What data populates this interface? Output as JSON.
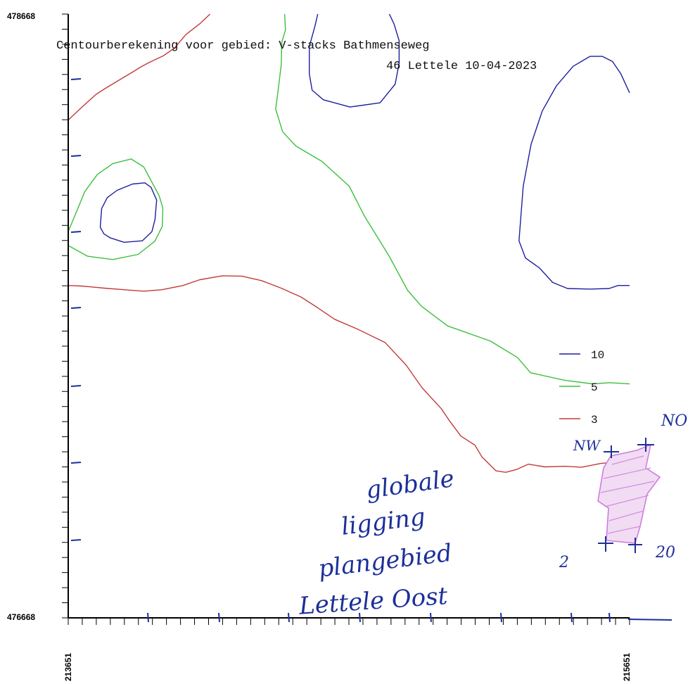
{
  "chart_data": {
    "type": "line",
    "title": "Centourberekening voor gebied: V-stacks Bathmenseweg",
    "subtitle": "46 Lettele 10-04-2023",
    "xlim": [
      213651,
      215651
    ],
    "ylim": [
      476668,
      478668
    ],
    "x_tick_labels": [
      "213651",
      "215651"
    ],
    "y_tick_labels": [
      "478668",
      "476668"
    ],
    "legend": {
      "placement": "right",
      "entries": [
        "10",
        "5",
        "3"
      ]
    },
    "series": [
      {
        "name": "10",
        "color": "#1f1f9e",
        "lines": [
          [
            [
              213770,
              478024
            ],
            [
              213765,
              477962
            ],
            [
              213778,
              477940
            ],
            [
              213800,
              477927
            ],
            [
              213850,
              477912
            ],
            [
              213915,
              477917
            ],
            [
              213949,
              477947
            ],
            [
              213960,
              477987
            ],
            [
              213966,
              478052
            ],
            [
              213946,
              478094
            ],
            [
              213924,
              478109
            ],
            [
              213880,
              478105
            ],
            [
              213825,
              478084
            ],
            [
              213790,
              478060
            ],
            [
              213770,
              478024
            ]
          ],
          [
            [
              214540,
              478668
            ],
            [
              214530,
              478628
            ],
            [
              214510,
              478560
            ],
            [
              214510,
              478470
            ],
            [
              214520,
              478416
            ],
            [
              214560,
              478384
            ],
            [
              214655,
              478360
            ],
            [
              214762,
              478374
            ],
            [
              214816,
              478436
            ],
            [
              214830,
              478506
            ],
            [
              214830,
              478580
            ],
            [
              214812,
              478635
            ],
            [
              214795,
              478668
            ]
          ],
          [
            [
              215651,
              478407
            ],
            [
              215620,
              478470
            ],
            [
              215590,
              478511
            ],
            [
              215554,
              478528
            ],
            [
              215510,
              478528
            ],
            [
              215450,
              478495
            ],
            [
              215390,
              478430
            ],
            [
              215340,
              478347
            ],
            [
              215300,
              478237
            ],
            [
              215272,
              478098
            ],
            [
              215257,
              477917
            ],
            [
              215280,
              477860
            ],
            [
              215330,
              477827
            ],
            [
              215377,
              477779
            ],
            [
              215430,
              477759
            ],
            [
              215510,
              477757
            ],
            [
              215578,
              477759
            ],
            [
              215610,
              477769
            ],
            [
              215651,
              477769
            ]
          ]
        ]
      },
      {
        "name": "5",
        "color": "#3cbf3c",
        "lines": [
          [
            [
              213651,
              477948
            ],
            [
              213670,
              477990
            ],
            [
              213710,
              478080
            ],
            [
              213755,
              478137
            ],
            [
              213810,
              478173
            ],
            [
              213875,
              478188
            ],
            [
              213920,
              478162
            ],
            [
              213975,
              478066
            ],
            [
              213988,
              478026
            ],
            [
              213986,
              477965
            ],
            [
              213960,
              477916
            ],
            [
              213900,
              477872
            ],
            [
              213810,
              477855
            ],
            [
              213720,
              477866
            ],
            [
              213665,
              477894
            ],
            [
              213651,
              477901
            ]
          ],
          [
            [
              214422,
              478668
            ],
            [
              214425,
              478615
            ],
            [
              214412,
              478575
            ],
            [
              214410,
              478500
            ],
            [
              214400,
              478425
            ],
            [
              214390,
              478353
            ],
            [
              214415,
              478278
            ],
            [
              214462,
              478231
            ],
            [
              214555,
              478180
            ],
            [
              214652,
              478098
            ],
            [
              214705,
              478001
            ],
            [
              214795,
              477865
            ],
            [
              214860,
              477753
            ],
            [
              214910,
              477700
            ],
            [
              215003,
              477635
            ],
            [
              215155,
              477585
            ],
            [
              215252,
              477530
            ],
            [
              215298,
              477480
            ],
            [
              215420,
              477455
            ],
            [
              215520,
              477443
            ],
            [
              215580,
              477447
            ],
            [
              215651,
              477443
            ]
          ]
        ]
      },
      {
        "name": "3",
        "color": "#c43a3a",
        "lines": [
          [
            [
              213651,
              478317
            ],
            [
              213700,
              478360
            ],
            [
              213750,
              478402
            ],
            [
              213780,
              478420
            ],
            [
              213830,
              478448
            ],
            [
              213870,
              478470
            ],
            [
              213910,
              478493
            ],
            [
              213940,
              478508
            ],
            [
              213990,
              478530
            ],
            [
              214029,
              478555
            ],
            [
              214070,
              478600
            ],
            [
              214120,
              478636
            ],
            [
              214156,
              478668
            ]
          ],
          [
            [
              213651,
              477769
            ],
            [
              213700,
              477767
            ],
            [
              213780,
              477760
            ],
            [
              213850,
              477755
            ],
            [
              213920,
              477750
            ],
            [
              213985,
              477755
            ],
            [
              214060,
              477769
            ],
            [
              214120,
              477788
            ],
            [
              214200,
              477801
            ],
            [
              214270,
              477800
            ],
            [
              214340,
              477785
            ],
            [
              214410,
              477760
            ],
            [
              214480,
              477731
            ],
            [
              214540,
              477695
            ],
            [
              214600,
              477657
            ],
            [
              214680,
              477625
            ],
            [
              214780,
              477580
            ],
            [
              214855,
              477505
            ],
            [
              214912,
              477430
            ],
            [
              214980,
              477361
            ],
            [
              215010,
              477320
            ],
            [
              215050,
              477270
            ],
            [
              215100,
              477240
            ],
            [
              215125,
              477201
            ],
            [
              215175,
              477155
            ],
            [
              215210,
              477150
            ],
            [
              215250,
              477160
            ],
            [
              215290,
              477177
            ],
            [
              215350,
              477168
            ],
            [
              215420,
              477170
            ],
            [
              215480,
              477167
            ],
            [
              215550,
              477180
            ],
            [
              215600,
              477183
            ],
            [
              215651,
              477177
            ]
          ]
        ]
      }
    ]
  },
  "annotations": {
    "handwritten_lines": [
      "globale",
      "ligging",
      "plangebied",
      "Lettele Oost"
    ],
    "corner_labels": {
      "nw": "NW",
      "no": "NO",
      "sw": "2",
      "se": "20"
    }
  }
}
